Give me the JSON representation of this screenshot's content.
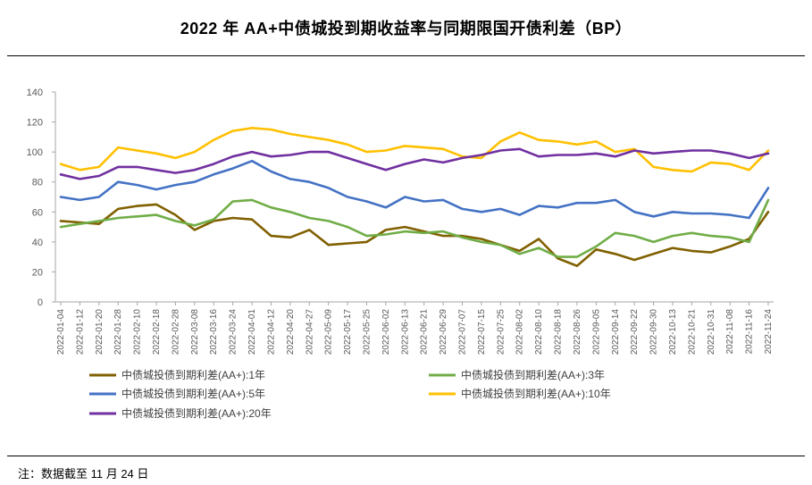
{
  "note": "注：数据截至 11 月 24 日",
  "chart_data": {
    "type": "line",
    "title": "2022 年 AA+中债城投到期收益率与同期限国开债利差（BP）",
    "xlabel": "",
    "ylabel": "",
    "ylim": [
      0,
      140
    ],
    "yticks": [
      0,
      20,
      40,
      60,
      80,
      100,
      120,
      140
    ],
    "grid": false,
    "legend_position": "bottom",
    "x": [
      "2022-01-04",
      "2022-01-12",
      "2022-01-20",
      "2022-01-28",
      "2022-02-10",
      "2022-02-18",
      "2022-02-28",
      "2022-03-08",
      "2022-03-16",
      "2022-03-24",
      "2022-04-01",
      "2022-04-12",
      "2022-04-20",
      "2022-04-27",
      "2022-05-09",
      "2022-05-17",
      "2022-05-25",
      "2022-06-02",
      "2022-06-13",
      "2022-06-21",
      "2022-06-29",
      "2022-07-07",
      "2022-07-15",
      "2022-07-25",
      "2022-08-02",
      "2022-08-10",
      "2022-08-18",
      "2022-08-26",
      "2022-09-05",
      "2022-09-14",
      "2022-09-22",
      "2022-09-30",
      "2022-10-13",
      "2022-10-21",
      "2022-10-31",
      "2022-11-08",
      "2022-11-16",
      "2022-11-24"
    ],
    "series": [
      {
        "name": "中债城投债到期利差(AA+):1年",
        "color": "#806000",
        "values": [
          54,
          53,
          52,
          62,
          64,
          65,
          58,
          48,
          54,
          56,
          55,
          44,
          43,
          48,
          38,
          39,
          40,
          48,
          50,
          47,
          44,
          44,
          42,
          38,
          34,
          42,
          29,
          24,
          35,
          32,
          28,
          32,
          36,
          34,
          33,
          37,
          42,
          60
        ]
      },
      {
        "name": "中债城投债到期利差(AA+):3年",
        "color": "#70AD47",
        "values": [
          50,
          52,
          54,
          56,
          57,
          58,
          54,
          51,
          55,
          67,
          68,
          63,
          60,
          56,
          54,
          50,
          44,
          45,
          47,
          46,
          47,
          43,
          40,
          38,
          32,
          36,
          30,
          30,
          37,
          46,
          44,
          40,
          44,
          46,
          44,
          43,
          40,
          68
        ]
      },
      {
        "name": "中债城投债到期利差(AA+):5年",
        "color": "#4472C4",
        "values": [
          70,
          68,
          70,
          80,
          78,
          75,
          78,
          80,
          85,
          89,
          94,
          87,
          82,
          80,
          76,
          70,
          67,
          63,
          70,
          67,
          68,
          62,
          60,
          62,
          58,
          64,
          63,
          66,
          66,
          68,
          60,
          57,
          60,
          59,
          59,
          58,
          56,
          76
        ]
      },
      {
        "name": "中债城投债到期利差(AA+):10年",
        "color": "#FFC000",
        "values": [
          92,
          88,
          90,
          103,
          101,
          99,
          96,
          100,
          108,
          114,
          116,
          115,
          112,
          110,
          108,
          105,
          100,
          101,
          104,
          103,
          102,
          97,
          96,
          107,
          113,
          108,
          107,
          105,
          107,
          100,
          102,
          90,
          88,
          87,
          93,
          92,
          88,
          101
        ]
      },
      {
        "name": "中债城投债到期利差(AA+):20年",
        "color": "#7030A0",
        "values": [
          85,
          82,
          84,
          90,
          90,
          88,
          86,
          88,
          92,
          97,
          100,
          97,
          98,
          100,
          100,
          96,
          92,
          88,
          92,
          95,
          93,
          96,
          98,
          101,
          102,
          97,
          98,
          98,
          99,
          97,
          101,
          99,
          100,
          101,
          101,
          99,
          96,
          99
        ]
      }
    ]
  }
}
